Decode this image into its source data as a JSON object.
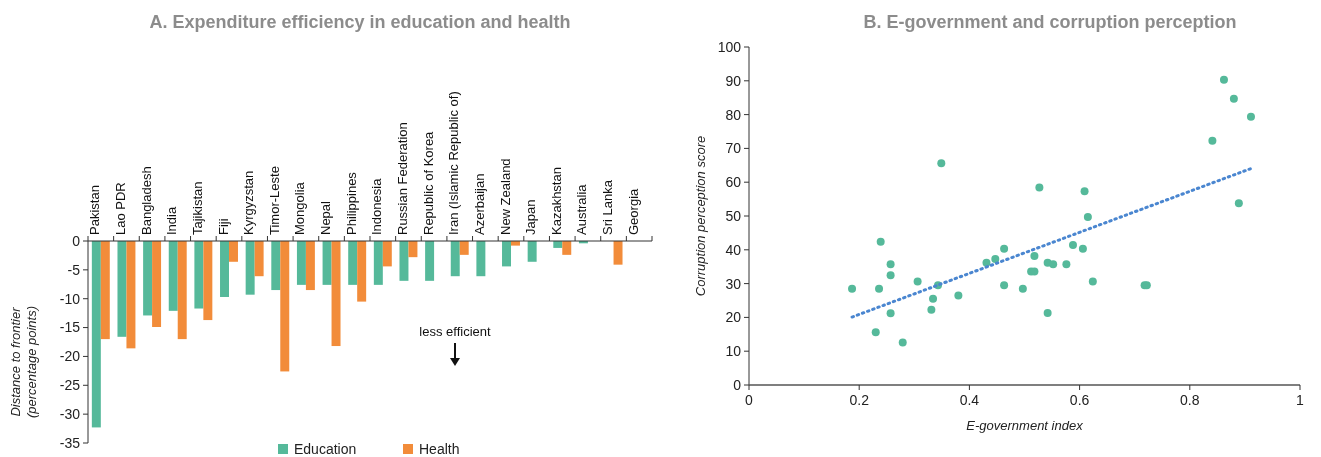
{
  "chart_data": [
    {
      "type": "bar",
      "title": "A. Expenditure efficiency in education and health",
      "ylabel": "Distance to frontier\n(percentage points)",
      "categories": [
        "Pakistan",
        "Lao PDR",
        "Bangladesh",
        "India",
        "Tajikistan",
        "Fiji",
        "Kyrgyzstan",
        "Timor-Leste",
        "Mongolia",
        "Nepal",
        "Philippines",
        "Indonesia",
        "Russian Federation",
        "Republic of Korea",
        "Iran (Islamic Republic of)",
        "Azerbaijan",
        "New Zealand",
        "Japan",
        "Kazakhstan",
        "Australia",
        "Sri Lanka",
        "Georgia"
      ],
      "series": [
        {
          "name": "Education",
          "color": "#55b99a",
          "values": [
            -32.3,
            -16.6,
            -12.9,
            -12.1,
            -11.7,
            -9.7,
            -9.3,
            -8.5,
            -7.6,
            -7.6,
            -7.6,
            -7.6,
            -6.9,
            -6.9,
            -6.1,
            -6.1,
            -4.4,
            -3.6,
            -1.2,
            -0.4,
            null,
            null
          ]
        },
        {
          "name": "Health",
          "color": "#f28c3a",
          "values": [
            -17.0,
            -18.6,
            -14.9,
            -17.0,
            -13.7,
            -3.6,
            -6.1,
            -22.6,
            -8.5,
            -18.2,
            -10.5,
            -4.4,
            -2.8,
            null,
            -2.4,
            null,
            -0.8,
            null,
            -2.4,
            null,
            -4.1,
            null
          ]
        }
      ],
      "ylim": [
        -35,
        0
      ],
      "yticks": [
        0,
        -5,
        -10,
        -15,
        -20,
        -25,
        -30,
        -35
      ],
      "legend": "bottom",
      "grid": false,
      "annotations": [
        "less efficient"
      ]
    },
    {
      "type": "scatter",
      "title": "B. E-government and corruption perception",
      "xlabel": "E-government index",
      "ylabel": "Corruption perception score",
      "xlim": [
        0,
        1
      ],
      "xticks": [
        0,
        0.2,
        0.4,
        0.6,
        0.8,
        1
      ],
      "ylim": [
        0,
        100
      ],
      "yticks": [
        0,
        10,
        20,
        30,
        40,
        50,
        60,
        70,
        80,
        90,
        100
      ],
      "grid": false,
      "series": [
        {
          "color": "#55b99a",
          "marker": "circle",
          "x": [
            0.187,
            0.239,
            0.236,
            0.257,
            0.257,
            0.257,
            0.23,
            0.279,
            0.306,
            0.349,
            0.343,
            0.334,
            0.331,
            0.38,
            0.431,
            0.447,
            0.463,
            0.463,
            0.497,
            0.527,
            0.518,
            0.512,
            0.518,
            0.542,
            0.552,
            0.542,
            0.576,
            0.588,
            0.606,
            0.609,
            0.615,
            0.624,
            0.718,
            0.722,
            0.841,
            0.862,
            0.88,
            0.911,
            0.889
          ],
          "values": [
            28.5,
            42.4,
            28.5,
            35.7,
            32.5,
            21.2,
            15.6,
            12.6,
            30.6,
            65.6,
            29.5,
            25.5,
            22.3,
            26.5,
            36.2,
            37.3,
            40.3,
            29.5,
            28.5,
            58.4,
            38.2,
            33.6,
            33.6,
            36.2,
            35.7,
            21.3,
            35.7,
            41.4,
            40.3,
            57.3,
            49.7,
            30.6,
            29.5,
            29.5,
            72.3,
            90.3,
            84.7,
            79.4,
            53.8
          ]
        },
        {
          "type": "line",
          "color": "#4a86d0",
          "line_style": "dotted",
          "x": [
            0.187,
            0.912
          ],
          "values": [
            20.1,
            64.1
          ]
        }
      ]
    }
  ]
}
